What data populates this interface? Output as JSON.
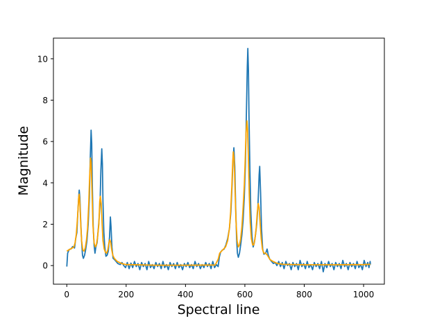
{
  "chart_data": {
    "type": "line",
    "xlabel": "Spectral line",
    "ylabel": "Magnitude",
    "xlim": [
      -45,
      1070
    ],
    "ylim": [
      -0.9,
      11.0
    ],
    "xticks": [
      0,
      200,
      400,
      600,
      800,
      1000
    ],
    "yticks": [
      0,
      2,
      4,
      6,
      8,
      10
    ],
    "grid": false,
    "series": [
      {
        "color": "#1f77b4",
        "points": [
          [
            0,
            -0.05
          ],
          [
            3,
            0.6
          ],
          [
            8,
            0.78
          ],
          [
            14,
            0.8
          ],
          [
            20,
            0.92
          ],
          [
            26,
            0.85
          ],
          [
            30,
            1.3
          ],
          [
            34,
            1.6
          ],
          [
            37,
            2.5
          ],
          [
            40,
            3.3
          ],
          [
            42,
            3.65
          ],
          [
            44,
            3.3
          ],
          [
            47,
            2.1
          ],
          [
            50,
            1.2
          ],
          [
            53,
            0.5
          ],
          [
            56,
            0.35
          ],
          [
            60,
            0.5
          ],
          [
            64,
            0.8
          ],
          [
            68,
            1.2
          ],
          [
            72,
            2.0
          ],
          [
            76,
            3.3
          ],
          [
            79,
            5.1
          ],
          [
            82,
            6.55
          ],
          [
            84,
            5.9
          ],
          [
            86,
            4.0
          ],
          [
            89,
            1.9
          ],
          [
            92,
            1.0
          ],
          [
            95,
            0.6
          ],
          [
            98,
            0.9
          ],
          [
            102,
            1.1
          ],
          [
            105,
            1.6
          ],
          [
            108,
            2.1
          ],
          [
            112,
            3.0
          ],
          [
            115,
            4.6
          ],
          [
            118,
            5.65
          ],
          [
            120,
            4.9
          ],
          [
            122,
            3.1
          ],
          [
            125,
            1.6
          ],
          [
            128,
            0.9
          ],
          [
            132,
            0.45
          ],
          [
            136,
            0.5
          ],
          [
            140,
            0.7
          ],
          [
            144,
            1.4
          ],
          [
            147,
            2.35
          ],
          [
            149,
            1.9
          ],
          [
            152,
            0.9
          ],
          [
            156,
            0.35
          ],
          [
            160,
            0.3
          ],
          [
            166,
            0.2
          ],
          [
            172,
            0.1
          ],
          [
            180,
            0.05
          ],
          [
            186,
            0.15
          ],
          [
            192,
            0.0
          ],
          [
            198,
            -0.1
          ],
          [
            204,
            0.15
          ],
          [
            210,
            -0.15
          ],
          [
            216,
            0.12
          ],
          [
            222,
            -0.1
          ],
          [
            228,
            0.2
          ],
          [
            234,
            -0.05
          ],
          [
            240,
            0.1
          ],
          [
            246,
            -0.2
          ],
          [
            252,
            0.15
          ],
          [
            258,
            -0.05
          ],
          [
            264,
            0.1
          ],
          [
            270,
            -0.2
          ],
          [
            276,
            0.2
          ],
          [
            282,
            -0.1
          ],
          [
            288,
            0.05
          ],
          [
            294,
            -0.15
          ],
          [
            300,
            0.15
          ],
          [
            306,
            -0.05
          ],
          [
            312,
            0.1
          ],
          [
            318,
            -0.15
          ],
          [
            324,
            0.2
          ],
          [
            330,
            -0.1
          ],
          [
            336,
            0.05
          ],
          [
            342,
            -0.2
          ],
          [
            348,
            0.15
          ],
          [
            354,
            -0.05
          ],
          [
            360,
            0.1
          ],
          [
            366,
            -0.15
          ],
          [
            372,
            0.15
          ],
          [
            378,
            -0.1
          ],
          [
            384,
            0.05
          ],
          [
            390,
            -0.2
          ],
          [
            396,
            0.1
          ],
          [
            402,
            -0.05
          ],
          [
            408,
            0.15
          ],
          [
            414,
            -0.1
          ],
          [
            420,
            0.05
          ],
          [
            426,
            -0.15
          ],
          [
            432,
            0.2
          ],
          [
            438,
            -0.05
          ],
          [
            444,
            0.1
          ],
          [
            450,
            -0.15
          ],
          [
            456,
            0.05
          ],
          [
            462,
            -0.1
          ],
          [
            468,
            0.15
          ],
          [
            474,
            -0.05
          ],
          [
            480,
            0.1
          ],
          [
            486,
            -0.15
          ],
          [
            492,
            0.2
          ],
          [
            498,
            -0.1
          ],
          [
            504,
            0.05
          ],
          [
            510,
            -0.05
          ],
          [
            514,
            0.4
          ],
          [
            518,
            0.65
          ],
          [
            524,
            0.75
          ],
          [
            530,
            0.8
          ],
          [
            536,
            1.0
          ],
          [
            542,
            1.3
          ],
          [
            548,
            1.8
          ],
          [
            553,
            2.6
          ],
          [
            557,
            3.9
          ],
          [
            560,
            5.1
          ],
          [
            563,
            5.7
          ],
          [
            566,
            4.8
          ],
          [
            569,
            2.8
          ],
          [
            572,
            1.3
          ],
          [
            575,
            0.6
          ],
          [
            578,
            0.4
          ],
          [
            582,
            0.6
          ],
          [
            586,
            1.0
          ],
          [
            590,
            1.5
          ],
          [
            594,
            2.2
          ],
          [
            598,
            3.3
          ],
          [
            602,
            5.0
          ],
          [
            605,
            7.3
          ],
          [
            608,
            9.6
          ],
          [
            610,
            10.5
          ],
          [
            612,
            9.4
          ],
          [
            614,
            7.2
          ],
          [
            617,
            4.6
          ],
          [
            620,
            2.6
          ],
          [
            624,
            1.4
          ],
          [
            628,
            0.9
          ],
          [
            632,
            1.1
          ],
          [
            636,
            1.5
          ],
          [
            640,
            2.0
          ],
          [
            644,
            2.9
          ],
          [
            648,
            4.4
          ],
          [
            650,
            4.8
          ],
          [
            653,
            3.5
          ],
          [
            656,
            1.8
          ],
          [
            660,
            0.8
          ],
          [
            664,
            0.55
          ],
          [
            670,
            0.6
          ],
          [
            675,
            0.8
          ],
          [
            679,
            0.5
          ],
          [
            684,
            0.3
          ],
          [
            690,
            0.2
          ],
          [
            696,
            0.1
          ],
          [
            702,
            0.15
          ],
          [
            708,
            0.0
          ],
          [
            714,
            0.2
          ],
          [
            720,
            -0.05
          ],
          [
            726,
            0.15
          ],
          [
            732,
            -0.15
          ],
          [
            738,
            0.2
          ],
          [
            744,
            0.0
          ],
          [
            750,
            0.1
          ],
          [
            756,
            -0.2
          ],
          [
            762,
            0.15
          ],
          [
            768,
            -0.05
          ],
          [
            774,
            0.1
          ],
          [
            780,
            -0.2
          ],
          [
            786,
            0.25
          ],
          [
            792,
            -0.05
          ],
          [
            798,
            0.1
          ],
          [
            804,
            -0.15
          ],
          [
            810,
            0.2
          ],
          [
            816,
            -0.1
          ],
          [
            822,
            0.05
          ],
          [
            828,
            -0.2
          ],
          [
            834,
            0.15
          ],
          [
            840,
            -0.05
          ],
          [
            846,
            0.1
          ],
          [
            852,
            -0.15
          ],
          [
            858,
            0.2
          ],
          [
            864,
            -0.3
          ],
          [
            870,
            0.1
          ],
          [
            876,
            -0.1
          ],
          [
            882,
            0.2
          ],
          [
            888,
            -0.05
          ],
          [
            894,
            0.1
          ],
          [
            900,
            -0.2
          ],
          [
            906,
            0.15
          ],
          [
            912,
            -0.05
          ],
          [
            918,
            0.1
          ],
          [
            924,
            -0.15
          ],
          [
            930,
            0.25
          ],
          [
            936,
            -0.05
          ],
          [
            942,
            0.1
          ],
          [
            948,
            -0.2
          ],
          [
            954,
            0.15
          ],
          [
            960,
            -0.05
          ],
          [
            966,
            0.1
          ],
          [
            972,
            -0.15
          ],
          [
            978,
            0.2
          ],
          [
            984,
            -0.1
          ],
          [
            990,
            0.05
          ],
          [
            996,
            -0.2
          ],
          [
            1002,
            0.25
          ],
          [
            1008,
            -0.05
          ],
          [
            1014,
            0.15
          ],
          [
            1018,
            -0.1
          ],
          [
            1022,
            0.2
          ],
          [
            1023,
            0.05
          ]
        ]
      },
      {
        "color": "#ffa500",
        "points": [
          [
            0,
            0.7
          ],
          [
            6,
            0.75
          ],
          [
            12,
            0.8
          ],
          [
            18,
            0.85
          ],
          [
            24,
            0.9
          ],
          [
            28,
            1.1
          ],
          [
            32,
            1.5
          ],
          [
            36,
            2.3
          ],
          [
            40,
            3.3
          ],
          [
            42,
            3.45
          ],
          [
            44,
            3.0
          ],
          [
            47,
            2.0
          ],
          [
            50,
            1.2
          ],
          [
            54,
            0.75
          ],
          [
            58,
            0.7
          ],
          [
            62,
            0.85
          ],
          [
            66,
            1.2
          ],
          [
            70,
            1.8
          ],
          [
            74,
            3.0
          ],
          [
            77,
            4.3
          ],
          [
            80,
            5.2
          ],
          [
            82,
            5.0
          ],
          [
            85,
            3.6
          ],
          [
            88,
            2.0
          ],
          [
            92,
            1.1
          ],
          [
            96,
            0.9
          ],
          [
            100,
            1.0
          ],
          [
            104,
            1.4
          ],
          [
            108,
            2.0
          ],
          [
            111,
            3.1
          ],
          [
            113,
            3.35
          ],
          [
            116,
            3.0
          ],
          [
            119,
            2.0
          ],
          [
            122,
            1.2
          ],
          [
            126,
            0.8
          ],
          [
            130,
            0.65
          ],
          [
            134,
            0.6
          ],
          [
            138,
            0.75
          ],
          [
            142,
            1.1
          ],
          [
            145,
            1.25
          ],
          [
            148,
            1.1
          ],
          [
            151,
            0.8
          ],
          [
            155,
            0.5
          ],
          [
            160,
            0.35
          ],
          [
            170,
            0.2
          ],
          [
            185,
            0.1
          ],
          [
            200,
            0.05
          ],
          [
            300,
            0.02
          ],
          [
            400,
            0.02
          ],
          [
            500,
            0.03
          ],
          [
            510,
            0.3
          ],
          [
            515,
            0.6
          ],
          [
            525,
            0.75
          ],
          [
            535,
            0.9
          ],
          [
            542,
            1.2
          ],
          [
            548,
            1.8
          ],
          [
            552,
            2.6
          ],
          [
            556,
            3.8
          ],
          [
            559,
            5.0
          ],
          [
            561,
            5.5
          ],
          [
            564,
            5.1
          ],
          [
            567,
            3.6
          ],
          [
            570,
            2.2
          ],
          [
            574,
            1.2
          ],
          [
            578,
            0.9
          ],
          [
            582,
            1.0
          ],
          [
            586,
            1.3
          ],
          [
            590,
            1.9
          ],
          [
            594,
            2.8
          ],
          [
            598,
            3.9
          ],
          [
            601,
            5.1
          ],
          [
            604,
            6.4
          ],
          [
            607,
            7.0
          ],
          [
            609,
            6.6
          ],
          [
            612,
            5.1
          ],
          [
            615,
            3.4
          ],
          [
            618,
            2.1
          ],
          [
            622,
            1.3
          ],
          [
            626,
            1.0
          ],
          [
            630,
            1.0
          ],
          [
            634,
            1.3
          ],
          [
            638,
            1.8
          ],
          [
            642,
            2.6
          ],
          [
            645,
            3.0
          ],
          [
            648,
            2.8
          ],
          [
            651,
            2.1
          ],
          [
            655,
            1.3
          ],
          [
            659,
            0.8
          ],
          [
            664,
            0.6
          ],
          [
            670,
            0.6
          ],
          [
            676,
            0.5
          ],
          [
            684,
            0.3
          ],
          [
            695,
            0.2
          ],
          [
            710,
            0.1
          ],
          [
            730,
            0.06
          ],
          [
            800,
            0.04
          ],
          [
            900,
            0.04
          ],
          [
            1000,
            0.05
          ],
          [
            1023,
            0.06
          ]
        ]
      }
    ]
  }
}
